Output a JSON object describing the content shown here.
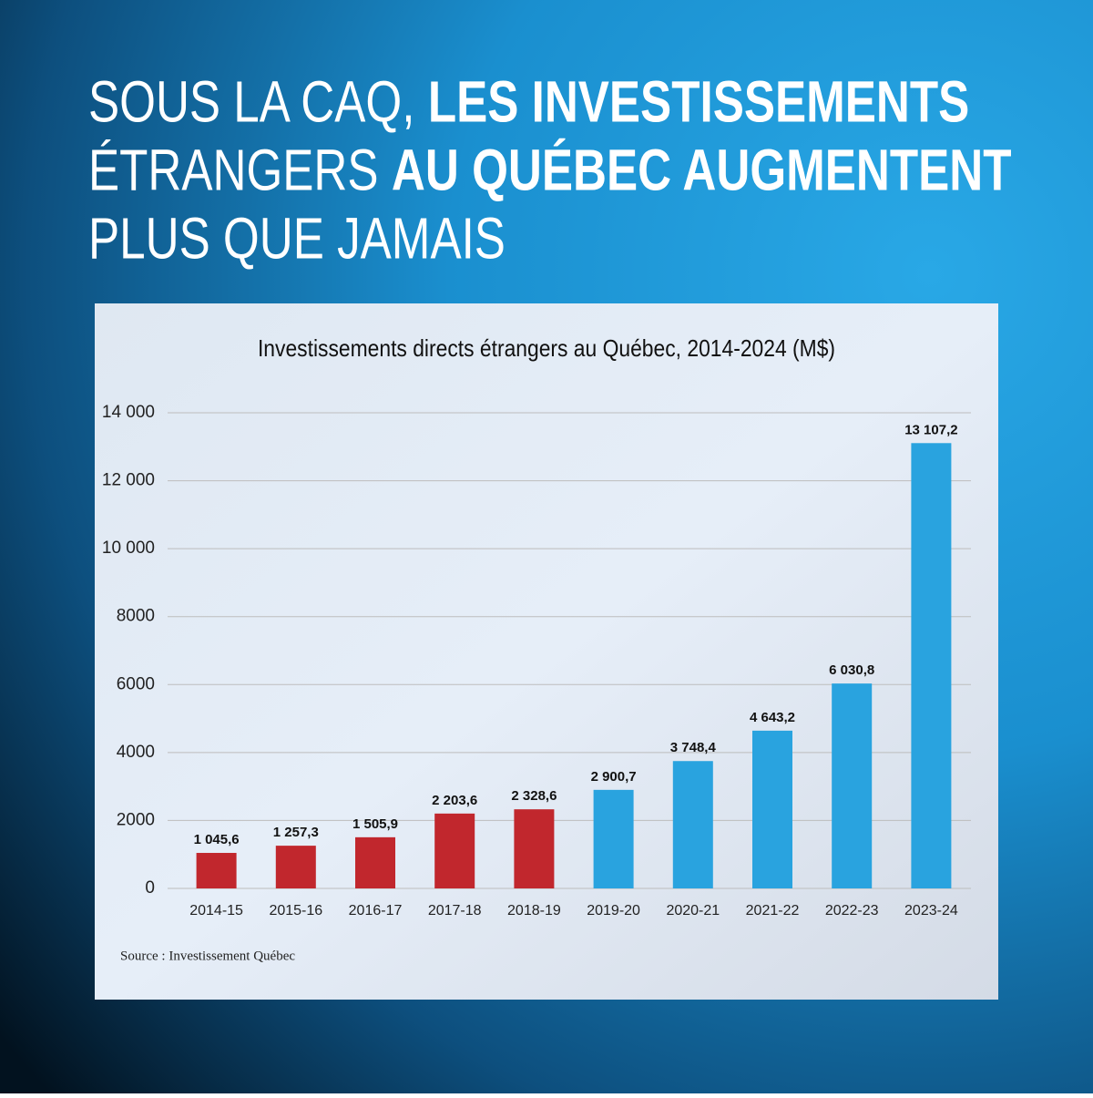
{
  "headline": [
    [
      {
        "text": "SOUS LA CAQ,",
        "bold": false
      },
      {
        "text": "LES INVESTISSEMENTS",
        "bold": true
      }
    ],
    [
      {
        "text": "ÉTRANGERS",
        "bold": false
      },
      {
        "text": "AU QUÉBEC AUGMENTENT",
        "bold": true
      }
    ],
    [
      {
        "text": "PLUS QUE JAMAIS",
        "bold": false
      }
    ]
  ],
  "chart_data": {
    "type": "bar",
    "title": "Investissements directs étrangers au Québec, 2014-2024 (M$)",
    "categories": [
      "2014-15",
      "2015-16",
      "2016-17",
      "2017-18",
      "2018-19",
      "2019-20",
      "2020-21",
      "2021-22",
      "2022-23",
      "2023-24"
    ],
    "values": [
      1045.6,
      1257.3,
      1505.9,
      2203.6,
      2328.6,
      2900.7,
      3748.4,
      4643.2,
      6030.8,
      13107.2
    ],
    "value_labels": [
      "1 045,6",
      "1 257,3",
      "1 505,9",
      "2 203,6",
      "2 328,6",
      "2 900,7",
      "3 748,4",
      "4 643,2",
      "6 030,8",
      "13 107,2"
    ],
    "colors": [
      "#c1272d",
      "#c1272d",
      "#c1272d",
      "#c1272d",
      "#c1272d",
      "#29a3df",
      "#29a3df",
      "#29a3df",
      "#29a3df",
      "#29a3df"
    ],
    "ylim": [
      0,
      14000
    ],
    "yticks": [
      0,
      2000,
      4000,
      6000,
      8000,
      {
        "value": 10000,
        "label": "10 000"
      },
      {
        "value": 12000,
        "label": "12 000"
      },
      {
        "value": 14000,
        "label": "14 000"
      }
    ],
    "grid": true,
    "source": "Source : Investissement Québec"
  }
}
